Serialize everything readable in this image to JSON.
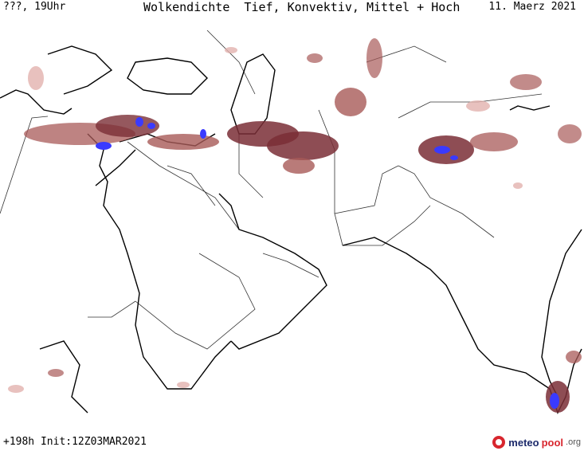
{
  "header": {
    "time_label": "???, 19Uhr",
    "title": "Wolkendichte  Tief, Konvektiv, Mittel + Hoch",
    "date": "11. Maerz 2021"
  },
  "footer": {
    "run_info": "+198h Init:12Z03MAR2021"
  },
  "logo": {
    "part1": "meteo",
    "part2": "pool",
    "part3": ".org"
  },
  "colors": {
    "cloud_light": "#e2b1ae",
    "cloud_mid": "#a85a58",
    "cloud_dark": "#7a2e36",
    "convective": "#3a3aff",
    "coast": "#000000",
    "border": "#333333"
  }
}
